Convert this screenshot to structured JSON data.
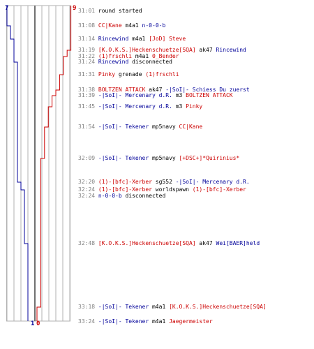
{
  "colors": {
    "red": "#cc0000",
    "blue": "#000099",
    "grid": "#b0b0b0",
    "mid": "#707070",
    "time": "#808080",
    "text": "#000000"
  },
  "scores": {
    "top_left": "7",
    "top_right": "9",
    "bottom_left": "1",
    "bottom_right": "0"
  },
  "chart_data": {
    "type": "line",
    "title": "",
    "xlabel": "",
    "ylabel": "",
    "grid": true,
    "x": [
      "31:01",
      "31:08",
      "31:14",
      "31:19",
      "31:22",
      "31:24",
      "31:31",
      "31:38",
      "31:39",
      "31:45",
      "31:54",
      "32:09",
      "32:20",
      "32:24",
      "32:48",
      "33:18",
      "33:24"
    ],
    "series": [
      {
        "name": "red",
        "values": [
          9,
          9,
          9,
          8,
          7,
          7,
          6,
          5,
          4,
          3,
          2,
          1,
          1,
          1,
          1,
          0,
          0
        ]
      },
      {
        "name": "blue",
        "values": [
          7,
          6,
          5,
          5,
          5,
          4,
          4,
          4,
          4,
          4,
          4,
          4,
          3,
          2,
          1,
          1,
          1
        ]
      }
    ]
  },
  "events": [
    {
      "time": "31:01",
      "parts": [
        {
          "c": "n",
          "text": "round started"
        }
      ]
    },
    {
      "time": "31:08",
      "parts": [
        {
          "c": "r",
          "text": "CC|Kane"
        },
        {
          "c": "n",
          "text": " m4a1 "
        },
        {
          "c": "b",
          "text": "n-0-0-b"
        }
      ]
    },
    {
      "time": "31:14",
      "parts": [
        {
          "c": "b",
          "text": "Rincewind"
        },
        {
          "c": "n",
          "text": " m4a1 "
        },
        {
          "c": "r",
          "text": "[JoD] Steve"
        }
      ]
    },
    {
      "time": "31:19",
      "parts": [
        {
          "c": "r",
          "text": "[K.O.K.S.]Heckenschuetze[SQA]"
        },
        {
          "c": "n",
          "text": " ak47 "
        },
        {
          "c": "b",
          "text": "Rincewind"
        }
      ]
    },
    {
      "time": "31:22",
      "parts": [
        {
          "c": "r",
          "text": "(1)frschli"
        },
        {
          "c": "n",
          "text": " m4a1 "
        },
        {
          "c": "r",
          "text": "0_Bender"
        }
      ]
    },
    {
      "time": "31:24",
      "parts": [
        {
          "c": "b",
          "text": "Rincewind"
        },
        {
          "c": "n",
          "text": " disconnected"
        }
      ]
    },
    {
      "time": "31:31",
      "parts": [
        {
          "c": "r",
          "text": "Pinky"
        },
        {
          "c": "n",
          "text": " grenade "
        },
        {
          "c": "r",
          "text": "(1)frschli"
        }
      ]
    },
    {
      "time": "31:38",
      "parts": [
        {
          "c": "r",
          "text": "BOLTZEN ATTACK"
        },
        {
          "c": "n",
          "text": " ak47 "
        },
        {
          "c": "b",
          "text": "-|SoI|- Schiess Du zuerst"
        }
      ]
    },
    {
      "time": "31:39",
      "parts": [
        {
          "c": "b",
          "text": "-|SoI|- Mercenary d.R."
        },
        {
          "c": "n",
          "text": " m3 "
        },
        {
          "c": "r",
          "text": "BOLTZEN ATTACK"
        }
      ]
    },
    {
      "time": "31:45",
      "parts": [
        {
          "c": "b",
          "text": "-|SoI|- Mercenary d.R."
        },
        {
          "c": "n",
          "text": " m3 "
        },
        {
          "c": "r",
          "text": "Pinky"
        }
      ]
    },
    {
      "time": "31:54",
      "parts": [
        {
          "c": "b",
          "text": "-|SoI|- Tekener"
        },
        {
          "c": "n",
          "text": " mp5navy "
        },
        {
          "c": "r",
          "text": "CC|Kane"
        }
      ]
    },
    {
      "time": "32:09",
      "parts": [
        {
          "c": "b",
          "text": "-|SoI|- Tekener"
        },
        {
          "c": "n",
          "text": " mp5navy "
        },
        {
          "c": "r",
          "text": "[+DSC+]*Quirinius*"
        }
      ]
    },
    {
      "time": "32:20",
      "parts": [
        {
          "c": "r",
          "text": "(1)-[bfc]-Xerber"
        },
        {
          "c": "n",
          "text": " sg552 "
        },
        {
          "c": "b",
          "text": "-|SoI|- Mercenary d.R."
        }
      ]
    },
    {
      "time": "32:24",
      "parts": [
        {
          "c": "r",
          "text": "(1)-[bfc]-Xerber"
        },
        {
          "c": "n",
          "text": " worldspawn "
        },
        {
          "c": "r",
          "text": "(1)-[bfc]-Xerber"
        }
      ]
    },
    {
      "time": "32:24",
      "parts": [
        {
          "c": "b",
          "text": "n-0-0-b"
        },
        {
          "c": "n",
          "text": " disconnected"
        }
      ]
    },
    {
      "time": "32:48",
      "parts": [
        {
          "c": "r",
          "text": "[K.O.K.S.]Heckenschuetze[SQA]"
        },
        {
          "c": "n",
          "text": " ak47 "
        },
        {
          "c": "b",
          "text": "Wei[BAER]held"
        }
      ]
    },
    {
      "time": "33:18",
      "parts": [
        {
          "c": "b",
          "text": "-|SoI|- Tekener"
        },
        {
          "c": "n",
          "text": " m4a1 "
        },
        {
          "c": "r",
          "text": "[K.O.K.S.]Heckenschuetze[SQA]"
        }
      ]
    },
    {
      "time": "33:24",
      "parts": [
        {
          "c": "b",
          "text": "-|SoI|- Tekener"
        },
        {
          "c": "n",
          "text": " m4a1 "
        },
        {
          "c": "r",
          "text": "Jaegermeister"
        }
      ]
    }
  ]
}
